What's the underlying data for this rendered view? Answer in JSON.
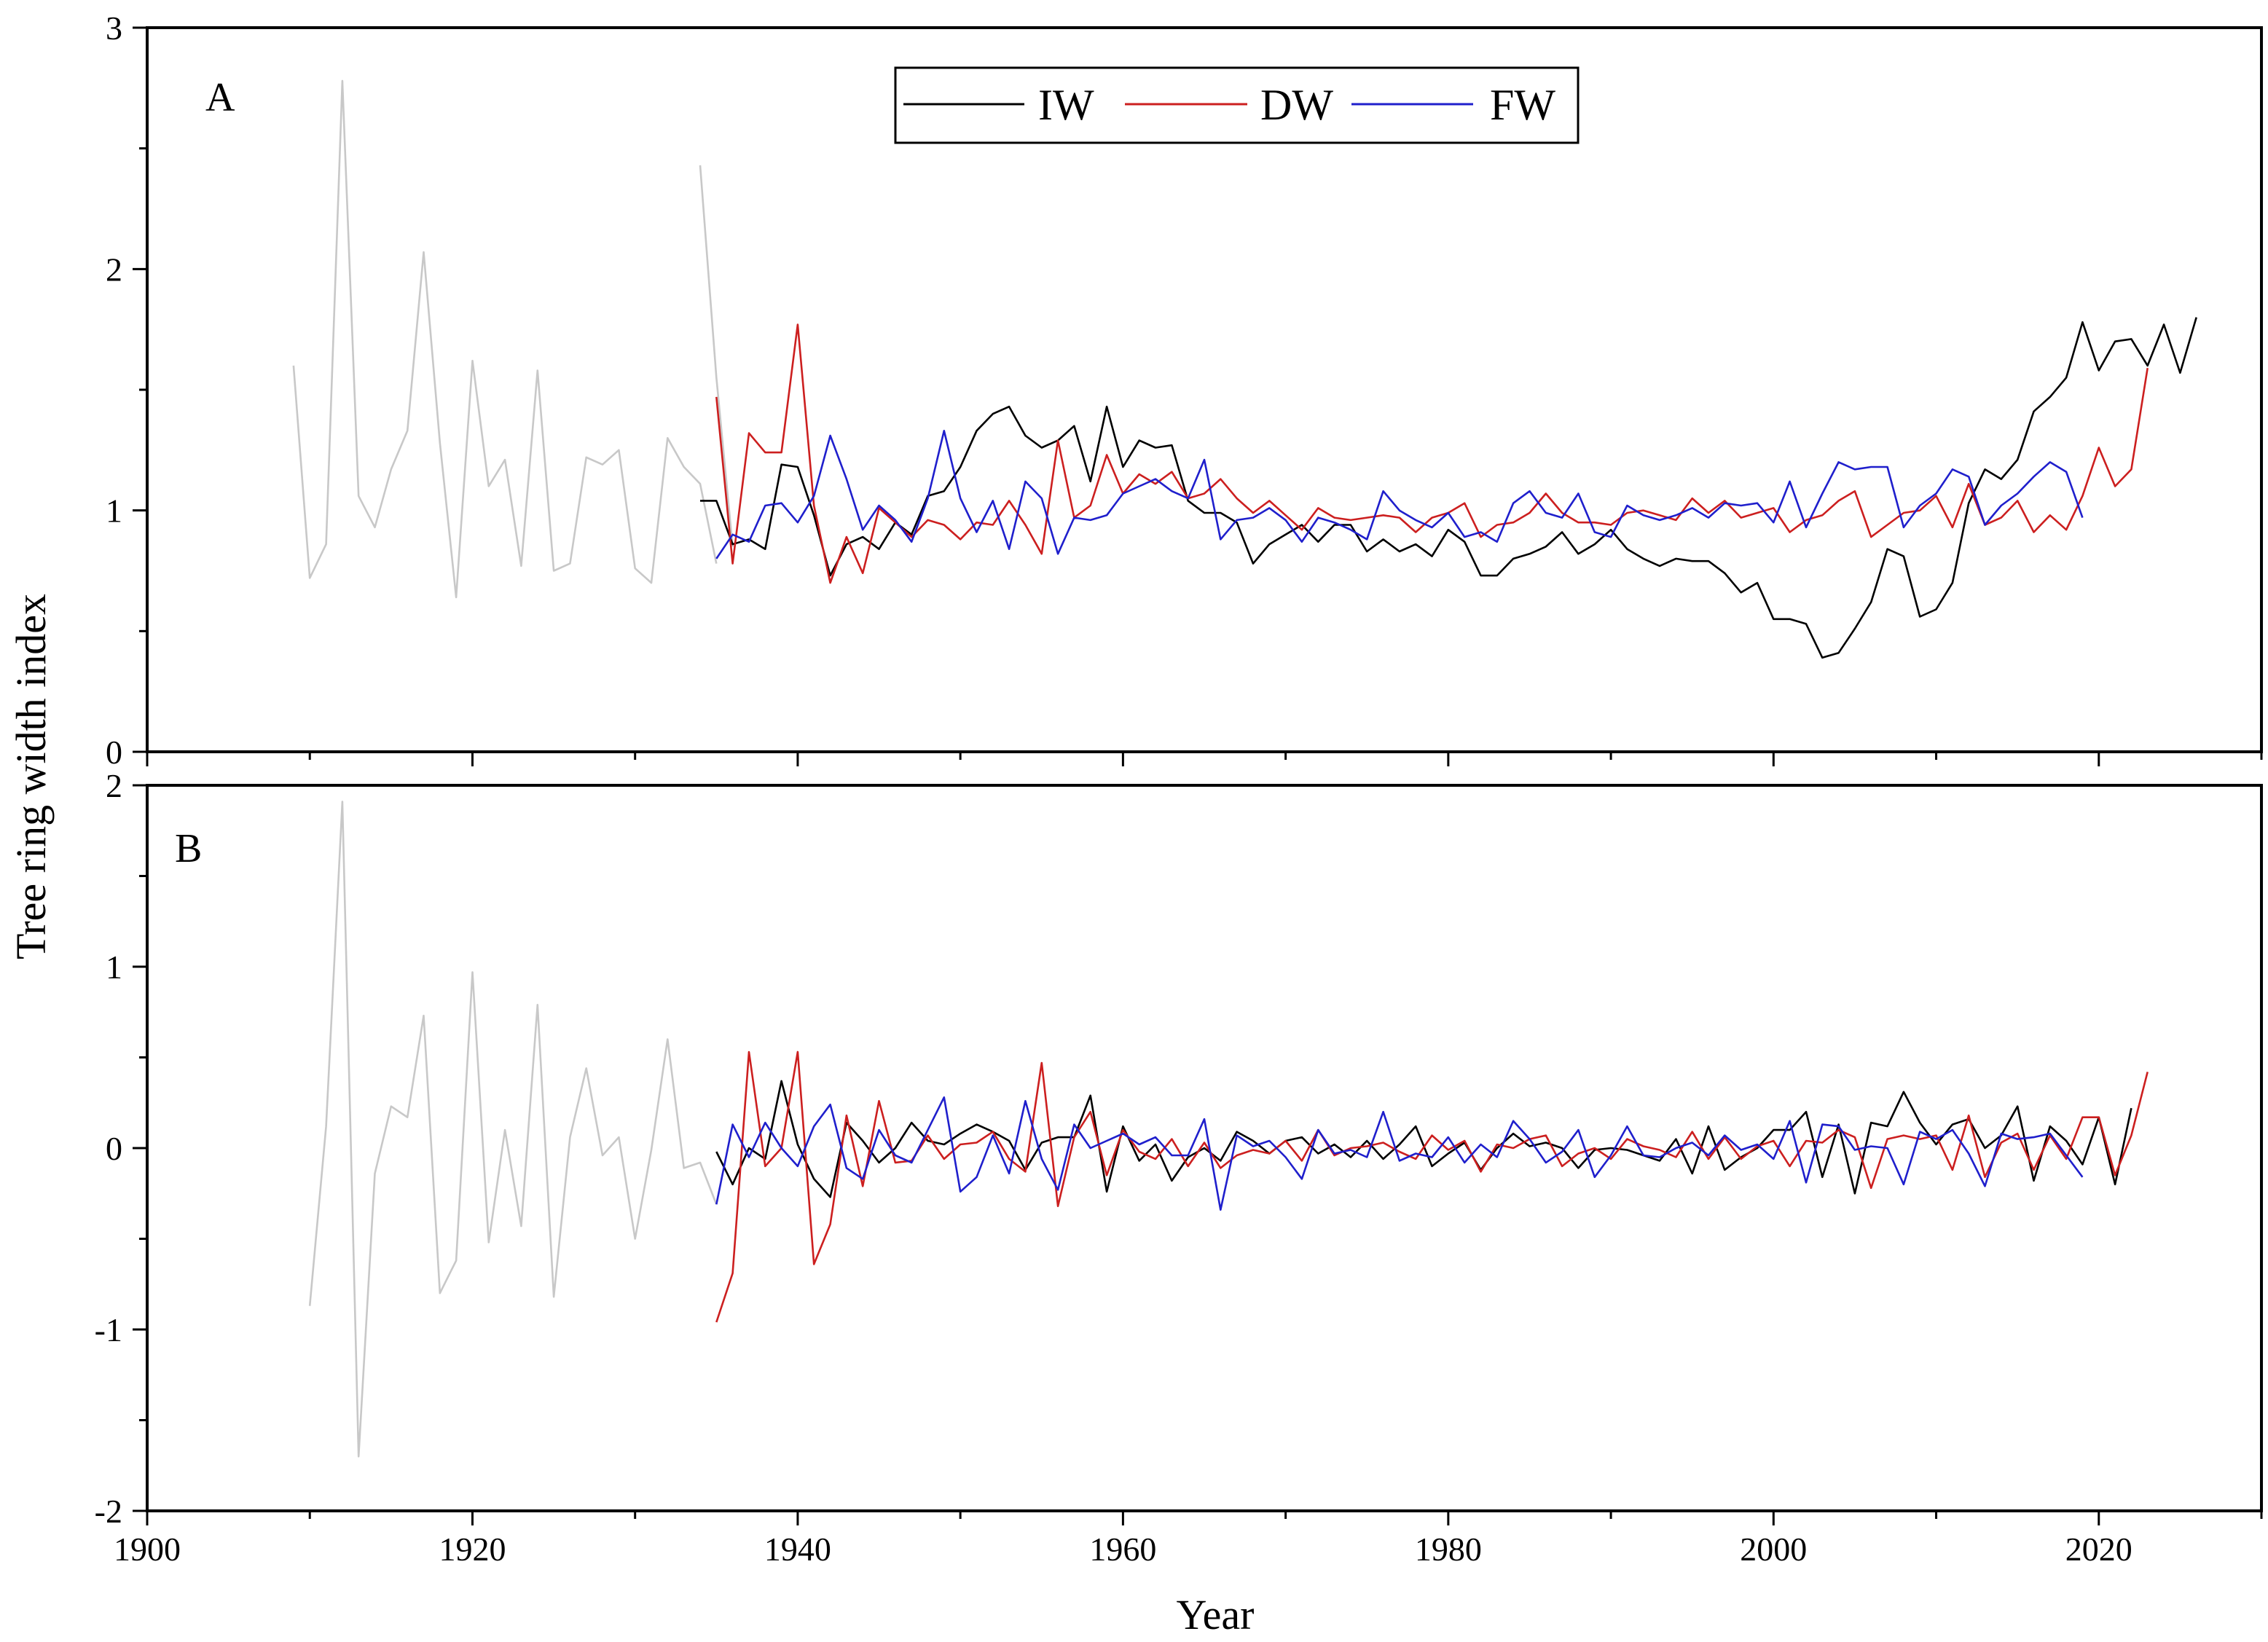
{
  "colors": {
    "IW": "#000000",
    "DW": "#cc1f1f",
    "FW": "#1f1fcc",
    "pre": "#c8c8c8",
    "frame": "#000000"
  },
  "chart_data": {
    "type": "line",
    "xlabel": "Year",
    "ylabel": "Tree ring width index",
    "xlim": [
      1900,
      2030
    ],
    "xticks": [
      "1900",
      "1920",
      "1940",
      "1960",
      "1980",
      "2000",
      "2020"
    ],
    "legend": {
      "placement": "top-center",
      "entries": [
        "IW",
        "DW",
        "FW"
      ]
    },
    "panels": [
      {
        "label": "A",
        "ylim": [
          0,
          3
        ],
        "yticks": [
          "0",
          "1",
          "2",
          "3"
        ],
        "series": [
          {
            "name": "",
            "style": "pre",
            "x_start": 1909,
            "values": [
              1.6,
              0.72,
              0.86,
              2.78,
              1.06,
              0.93,
              1.17,
              1.33,
              2.07,
              1.28,
              0.64,
              1.62,
              1.1,
              1.21,
              0.77,
              1.58,
              0.75,
              0.78,
              1.22,
              1.19,
              1.25,
              0.76,
              0.7,
              1.3,
              1.18,
              1.11,
              0.78
            ]
          },
          {
            "name": "",
            "style": "pre",
            "x_start": 1934,
            "values": [
              2.43,
              1.55,
              0.85
            ]
          },
          {
            "name": "IW",
            "x_start": 1934,
            "values": [
              1.04,
              1.04,
              0.86,
              0.88,
              0.84,
              1.19,
              1.18,
              0.98,
              0.73,
              0.86,
              0.89,
              0.84,
              0.95,
              0.9,
              1.06,
              1.08,
              1.18,
              1.33,
              1.4,
              1.43,
              1.31,
              1.26,
              1.29,
              1.35,
              1.12,
              1.43,
              1.18,
              1.29,
              1.26,
              1.27,
              1.04,
              0.99,
              0.99,
              0.95,
              0.78,
              0.86,
              0.9,
              0.94,
              0.87,
              0.94,
              0.94,
              0.83,
              0.88,
              0.83,
              0.86,
              0.81,
              0.92,
              0.87,
              0.73,
              0.73,
              0.8,
              0.82,
              0.85,
              0.91,
              0.82,
              0.86,
              0.92,
              0.84,
              0.8,
              0.77,
              0.8,
              0.79,
              0.79,
              0.74,
              0.66,
              0.7,
              0.55,
              0.55,
              0.53,
              0.39,
              0.41,
              0.51,
              0.62,
              0.84,
              0.81,
              0.56,
              0.59,
              0.7,
              1.03,
              1.17,
              1.13,
              1.21,
              1.41,
              1.47,
              1.55,
              1.78,
              1.58,
              1.7,
              1.71,
              1.6,
              1.77,
              1.57,
              1.8
            ]
          },
          {
            "name": "DW",
            "x_start": 1935,
            "values": [
              1.47,
              0.78,
              1.32,
              1.24,
              1.24,
              1.77,
              1.02,
              0.7,
              0.89,
              0.74,
              1.01,
              0.95,
              0.89,
              0.96,
              0.94,
              0.88,
              0.95,
              0.94,
              1.04,
              0.94,
              0.82,
              1.29,
              0.97,
              1.02,
              1.23,
              1.07,
              1.15,
              1.11,
              1.16,
              1.05,
              1.07,
              1.13,
              1.05,
              0.99,
              1.04,
              0.98,
              0.92,
              1.01,
              0.97,
              0.96,
              0.97,
              0.98,
              0.97,
              0.91,
              0.97,
              0.99,
              1.03,
              0.89,
              0.94,
              0.95,
              0.99,
              1.07,
              0.99,
              0.95,
              0.95,
              0.94,
              0.99,
              1.0,
              0.98,
              0.96,
              1.05,
              0.99,
              1.04,
              0.97,
              0.99,
              1.01,
              0.91,
              0.96,
              0.98,
              1.04,
              1.08,
              0.89,
              0.94,
              0.99,
              1.0,
              1.06,
              0.93,
              1.11,
              0.94,
              0.97,
              1.04,
              0.91,
              0.98,
              0.92,
              1.06,
              1.26,
              1.1,
              1.17,
              1.59
            ]
          },
          {
            "name": "FW",
            "x_start": 1935,
            "values": [
              0.8,
              0.9,
              0.87,
              1.02,
              1.03,
              0.95,
              1.06,
              1.31,
              1.13,
              0.92,
              1.02,
              0.96,
              0.87,
              1.05,
              1.33,
              1.05,
              0.91,
              1.04,
              0.84,
              1.12,
              1.05,
              0.82,
              0.97,
              0.96,
              0.98,
              1.07,
              1.1,
              1.13,
              1.08,
              1.05,
              1.21,
              0.88,
              0.96,
              0.97,
              1.01,
              0.96,
              0.87,
              0.97,
              0.95,
              0.92,
              0.88,
              1.08,
              1.0,
              0.96,
              0.93,
              0.99,
              0.89,
              0.91,
              0.87,
              1.03,
              1.08,
              0.99,
              0.97,
              1.07,
              0.91,
              0.89,
              1.02,
              0.98,
              0.96,
              0.98,
              1.01,
              0.97,
              1.03,
              1.02,
              1.03,
              0.95,
              1.12,
              0.93,
              1.07,
              1.2,
              1.17,
              1.18,
              1.18,
              0.93,
              1.02,
              1.07,
              1.17,
              1.14,
              0.94,
              1.02,
              1.07,
              1.14,
              1.2,
              1.16,
              0.97
            ]
          }
        ]
      },
      {
        "label": "B",
        "ylim": [
          -2,
          2
        ],
        "yticks": [
          "-2",
          "-1",
          "0",
          "1",
          "2"
        ],
        "series": [
          {
            "name": "",
            "style": "pre",
            "x_start": 1910,
            "values": [
              -0.87,
              0.12,
              1.91,
              -1.7,
              -0.14,
              0.23,
              0.17,
              0.73,
              -0.8,
              -0.62,
              0.97,
              -0.52,
              0.1,
              -0.43,
              0.79,
              -0.82,
              0.06,
              0.44,
              -0.04,
              0.06,
              -0.5,
              -0.01,
              0.6,
              -0.11,
              -0.08,
              -0.31
            ]
          },
          {
            "name": "IW",
            "x_start": 1935,
            "values": [
              -0.02,
              -0.2,
              0.0,
              -0.06,
              0.37,
              0.02,
              -0.17,
              -0.27,
              0.14,
              0.04,
              -0.08,
              0.0,
              0.14,
              0.04,
              0.02,
              0.08,
              0.13,
              0.09,
              0.04,
              -0.12,
              0.03,
              0.06,
              0.06,
              0.29,
              -0.24,
              0.12,
              -0.07,
              0.02,
              -0.18,
              -0.05,
              0.0,
              -0.07,
              0.09,
              0.04,
              -0.03,
              0.04,
              0.06,
              -0.03,
              0.02,
              -0.05,
              0.04,
              -0.06,
              0.02,
              0.12,
              -0.1,
              -0.03,
              0.03,
              -0.12,
              0.0,
              0.08,
              0.01,
              0.03,
              0.0,
              -0.11,
              -0.01,
              0.0,
              -0.01,
              -0.04,
              -0.07,
              0.05,
              -0.14,
              0.12,
              -0.12,
              -0.05,
              0.0,
              0.1,
              0.1,
              0.2,
              -0.16,
              0.13,
              -0.25,
              0.14,
              0.12,
              0.31,
              0.14,
              0.02,
              0.13,
              0.16,
              0.0,
              0.07,
              0.23,
              -0.18,
              0.12,
              0.04,
              -0.09,
              0.17,
              -0.2,
              0.22
            ]
          },
          {
            "name": "DW",
            "x_start": 1935,
            "values": [
              -0.96,
              -0.69,
              0.53,
              -0.1,
              0.0,
              0.53,
              -0.64,
              -0.42,
              0.18,
              -0.21,
              0.26,
              -0.08,
              -0.07,
              0.07,
              -0.06,
              0.02,
              0.03,
              0.09,
              -0.06,
              -0.13,
              0.47,
              -0.32,
              0.06,
              0.2,
              -0.15,
              0.1,
              -0.02,
              -0.06,
              0.05,
              -0.1,
              0.03,
              -0.11,
              -0.04,
              -0.01,
              -0.03,
              0.04,
              -0.07,
              0.1,
              -0.04,
              0.0,
              0.01,
              0.03,
              -0.02,
              -0.06,
              0.07,
              -0.01,
              0.04,
              -0.13,
              0.02,
              0.0,
              0.05,
              0.07,
              -0.1,
              -0.03,
              0.0,
              -0.06,
              0.05,
              0.01,
              -0.01,
              -0.05,
              0.09,
              -0.06,
              0.06,
              -0.06,
              0.01,
              0.04,
              -0.1,
              0.04,
              0.03,
              0.1,
              0.06,
              -0.22,
              0.05,
              0.07,
              0.05,
              0.07,
              -0.12,
              0.18,
              -0.16,
              0.03,
              0.08,
              -0.12,
              0.07,
              -0.06,
              0.17,
              0.17,
              -0.15,
              0.07,
              0.42
            ]
          },
          {
            "name": "FW",
            "x_start": 1935,
            "values": [
              -0.31,
              0.13,
              -0.05,
              0.14,
              0.0,
              -0.1,
              0.12,
              0.24,
              -0.11,
              -0.17,
              0.1,
              -0.04,
              -0.08,
              0.1,
              0.28,
              -0.24,
              -0.16,
              0.07,
              -0.14,
              0.26,
              -0.06,
              -0.23,
              0.13,
              0.0,
              0.04,
              0.08,
              0.02,
              0.06,
              -0.04,
              -0.04,
              0.16,
              -0.34,
              0.07,
              0.01,
              0.04,
              -0.05,
              -0.17,
              0.1,
              -0.03,
              -0.01,
              -0.05,
              0.2,
              -0.07,
              -0.03,
              -0.05,
              0.06,
              -0.08,
              0.02,
              -0.05,
              0.15,
              0.05,
              -0.08,
              -0.02,
              0.1,
              -0.16,
              -0.04,
              0.12,
              -0.04,
              -0.05,
              0.0,
              0.03,
              -0.04,
              0.07,
              -0.01,
              0.02,
              -0.06,
              0.15,
              -0.19,
              0.13,
              0.12,
              -0.01,
              0.01,
              0.0,
              -0.2,
              0.09,
              0.05,
              0.1,
              -0.03,
              -0.21,
              0.08,
              0.05,
              0.06,
              0.08,
              -0.04,
              -0.16
            ]
          }
        ]
      }
    ]
  }
}
